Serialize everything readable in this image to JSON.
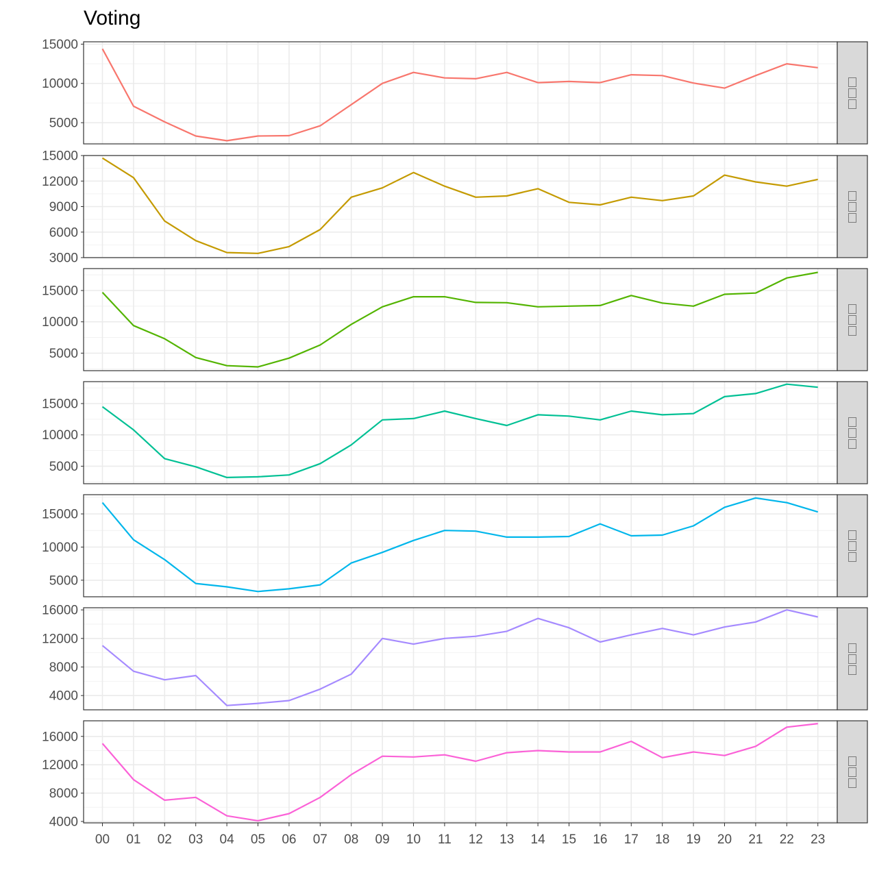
{
  "chart_data": {
    "type": "line",
    "title": "Voting",
    "xlabel": "",
    "ylabel": "",
    "facet_layout": "rows",
    "legend": "none",
    "grid": true,
    "categories": [
      "00",
      "01",
      "02",
      "03",
      "04",
      "05",
      "06",
      "07",
      "08",
      "09",
      "10",
      "11",
      "12",
      "13",
      "14",
      "15",
      "16",
      "17",
      "18",
      "19",
      "20",
      "21",
      "22",
      "23"
    ],
    "series": [
      {
        "color": "#F8766D",
        "ylim": [
          2300,
          15300
        ],
        "yticks": [
          5000,
          10000,
          15000
        ],
        "values": [
          14400,
          7100,
          5100,
          3300,
          2700,
          3300,
          3350,
          4600,
          7300,
          10000,
          11400,
          10700,
          10600,
          11400,
          10100,
          10250,
          10100,
          11100,
          11000,
          10050,
          9400,
          11000,
          12500,
          12000
        ]
      },
      {
        "color": "#C49A00",
        "ylim": [
          3000,
          15000
        ],
        "yticks": [
          3000,
          6000,
          9000,
          12000,
          15000
        ],
        "values": [
          14700,
          12400,
          7300,
          5000,
          3600,
          3500,
          4300,
          6300,
          10100,
          11200,
          13000,
          11400,
          10100,
          10250,
          11100,
          9500,
          9200,
          10100,
          9700,
          10250,
          12700,
          11900,
          11400,
          12200
        ]
      },
      {
        "color": "#53B400",
        "ylim": [
          2200,
          18500
        ],
        "yticks": [
          5000,
          10000,
          15000
        ],
        "values": [
          14700,
          9400,
          7300,
          4300,
          3000,
          2800,
          4200,
          6300,
          9600,
          12400,
          14000,
          14000,
          13100,
          13050,
          12400,
          12500,
          12600,
          14200,
          13000,
          12500,
          14400,
          14600,
          17000,
          17900
        ]
      },
      {
        "color": "#00C094",
        "ylim": [
          2200,
          18500
        ],
        "yticks": [
          5000,
          10000,
          15000
        ],
        "values": [
          14500,
          10800,
          6200,
          4900,
          3200,
          3300,
          3600,
          5400,
          8400,
          12400,
          12600,
          13800,
          12600,
          11500,
          13200,
          13000,
          12400,
          13800,
          13200,
          13400,
          16100,
          16600,
          18100,
          17600
        ]
      },
      {
        "color": "#00B6EB",
        "ylim": [
          2500,
          17900
        ],
        "yticks": [
          5000,
          10000,
          15000
        ],
        "values": [
          16700,
          11100,
          8100,
          4500,
          4000,
          3300,
          3700,
          4300,
          7600,
          9200,
          11000,
          12500,
          12400,
          11500,
          11500,
          11600,
          13500,
          11700,
          11800,
          13200,
          16000,
          17400,
          16700,
          15300
        ]
      },
      {
        "color": "#A58AFF",
        "ylim": [
          2000,
          16300
        ],
        "yticks": [
          4000,
          8000,
          12000,
          16000
        ],
        "values": [
          11000,
          7400,
          6200,
          6800,
          2600,
          2900,
          3300,
          4900,
          7000,
          12000,
          11200,
          12000,
          12300,
          13000,
          14800,
          13500,
          11500,
          12500,
          13400,
          12500,
          13600,
          14300,
          16000,
          15000
        ]
      },
      {
        "color": "#FB61D7",
        "ylim": [
          3800,
          18200
        ],
        "yticks": [
          4000,
          8000,
          12000,
          16000
        ],
        "values": [
          15000,
          9900,
          7000,
          7400,
          4800,
          4100,
          5100,
          7400,
          10600,
          13200,
          13100,
          13400,
          12500,
          13700,
          14000,
          13800,
          13800,
          15300,
          13000,
          13800,
          13300,
          14600,
          17300,
          17800
        ]
      }
    ]
  }
}
